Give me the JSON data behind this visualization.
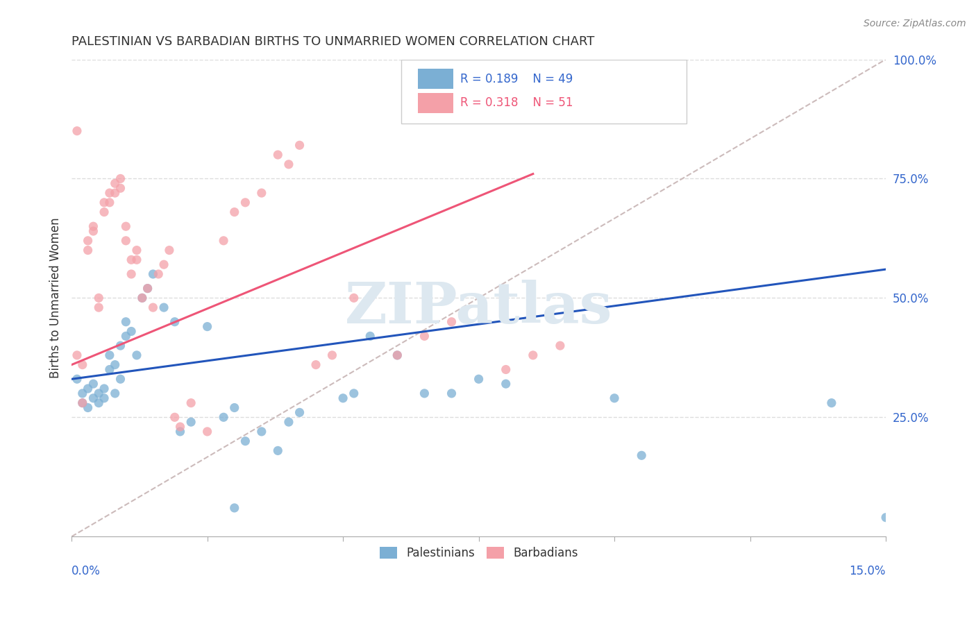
{
  "title": "PALESTINIAN VS BARBADIAN BIRTHS TO UNMARRIED WOMEN CORRELATION CHART",
  "source": "Source: ZipAtlas.com",
  "ylabel": "Births to Unmarried Women",
  "xlim": [
    0.0,
    0.15
  ],
  "ylim": [
    0.0,
    1.0
  ],
  "yticks": [
    0.25,
    0.5,
    0.75,
    1.0
  ],
  "ytick_labels": [
    "25.0%",
    "50.0%",
    "75.0%",
    "100.0%"
  ],
  "xtick_positions": [
    0.0,
    0.025,
    0.05,
    0.075,
    0.1,
    0.125,
    0.15
  ],
  "watermark": "ZIPatlas",
  "blue_color": "#7BAFD4",
  "pink_color": "#F4A0A8",
  "line_blue": "#2255BB",
  "line_pink": "#EE5577",
  "line_dashed_color": "#CCBBBB",
  "title_color": "#333333",
  "axis_color": "#3366CC",
  "grid_color": "#DDDDDD",
  "pal_x": [
    0.001,
    0.002,
    0.002,
    0.003,
    0.003,
    0.004,
    0.004,
    0.005,
    0.005,
    0.006,
    0.006,
    0.007,
    0.007,
    0.008,
    0.008,
    0.009,
    0.009,
    0.01,
    0.01,
    0.011,
    0.012,
    0.013,
    0.014,
    0.015,
    0.017,
    0.019,
    0.02,
    0.022,
    0.025,
    0.028,
    0.03,
    0.032,
    0.035,
    0.038,
    0.04,
    0.042,
    0.05,
    0.052,
    0.055,
    0.06,
    0.065,
    0.07,
    0.075,
    0.08,
    0.1,
    0.105,
    0.14,
    0.15,
    0.03
  ],
  "pal_y": [
    0.33,
    0.3,
    0.28,
    0.31,
    0.27,
    0.29,
    0.32,
    0.28,
    0.3,
    0.31,
    0.29,
    0.35,
    0.38,
    0.36,
    0.3,
    0.4,
    0.33,
    0.42,
    0.45,
    0.43,
    0.38,
    0.5,
    0.52,
    0.55,
    0.48,
    0.45,
    0.22,
    0.24,
    0.44,
    0.25,
    0.27,
    0.2,
    0.22,
    0.18,
    0.24,
    0.26,
    0.29,
    0.3,
    0.42,
    0.38,
    0.3,
    0.3,
    0.33,
    0.32,
    0.29,
    0.17,
    0.28,
    0.04,
    0.06
  ],
  "bar_x": [
    0.001,
    0.001,
    0.002,
    0.002,
    0.003,
    0.003,
    0.004,
    0.004,
    0.005,
    0.005,
    0.006,
    0.006,
    0.007,
    0.007,
    0.008,
    0.008,
    0.009,
    0.009,
    0.01,
    0.01,
    0.011,
    0.011,
    0.012,
    0.012,
    0.013,
    0.014,
    0.015,
    0.016,
    0.017,
    0.018,
    0.019,
    0.02,
    0.022,
    0.025,
    0.028,
    0.03,
    0.032,
    0.035,
    0.038,
    0.04,
    0.042,
    0.045,
    0.048,
    0.052,
    0.055,
    0.06,
    0.065,
    0.07,
    0.08,
    0.085,
    0.09
  ],
  "bar_y": [
    0.38,
    0.85,
    0.36,
    0.28,
    0.62,
    0.6,
    0.65,
    0.64,
    0.5,
    0.48,
    0.7,
    0.68,
    0.72,
    0.7,
    0.74,
    0.72,
    0.75,
    0.73,
    0.65,
    0.62,
    0.58,
    0.55,
    0.6,
    0.58,
    0.5,
    0.52,
    0.48,
    0.55,
    0.57,
    0.6,
    0.25,
    0.23,
    0.28,
    0.22,
    0.62,
    0.68,
    0.7,
    0.72,
    0.8,
    0.78,
    0.82,
    0.36,
    0.38,
    0.5,
    0.5,
    0.38,
    0.42,
    0.45,
    0.35,
    0.38,
    0.4
  ],
  "blue_line_x": [
    0.0,
    0.15
  ],
  "blue_line_y": [
    0.33,
    0.56
  ],
  "pink_line_x": [
    0.0,
    0.085
  ],
  "pink_line_y": [
    0.36,
    0.76
  ],
  "dash_line_x": [
    0.0,
    0.15
  ],
  "dash_line_y": [
    0.0,
    1.0
  ]
}
